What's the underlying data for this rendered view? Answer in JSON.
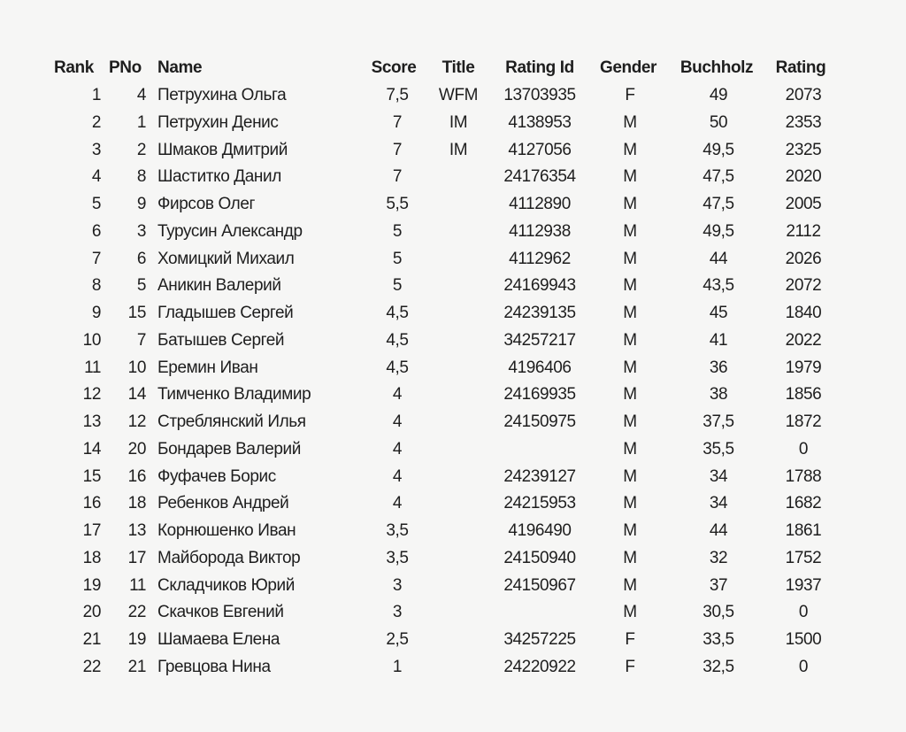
{
  "headers": {
    "rank": "Rank",
    "pno": "PNo",
    "name": "Name",
    "score": "Score",
    "title": "Title",
    "rating_id": "Rating Id",
    "gender": "Gender",
    "buchholz": "Buchholz",
    "rating": "Rating"
  },
  "rows": [
    {
      "rank": "1",
      "pno": "4",
      "name": "Петрухина Ольга",
      "score": "7,5",
      "title": "WFM",
      "rating_id": "13703935",
      "gender": "F",
      "buchholz": "49",
      "rating": "2073"
    },
    {
      "rank": "2",
      "pno": "1",
      "name": "Петрухин Денис",
      "score": "7",
      "title": "IM",
      "rating_id": "4138953",
      "gender": "M",
      "buchholz": "50",
      "rating": "2353"
    },
    {
      "rank": "3",
      "pno": "2",
      "name": "Шмаков Дмитрий",
      "score": "7",
      "title": "IM",
      "rating_id": "4127056",
      "gender": "M",
      "buchholz": "49,5",
      "rating": "2325"
    },
    {
      "rank": "4",
      "pno": "8",
      "name": "Шаститко Данил",
      "score": "7",
      "title": "",
      "rating_id": "24176354",
      "gender": "M",
      "buchholz": "47,5",
      "rating": "2020"
    },
    {
      "rank": "5",
      "pno": "9",
      "name": "Фирсов Олег",
      "score": "5,5",
      "title": "",
      "rating_id": "4112890",
      "gender": "M",
      "buchholz": "47,5",
      "rating": "2005"
    },
    {
      "rank": "6",
      "pno": "3",
      "name": "Турусин Александр",
      "score": "5",
      "title": "",
      "rating_id": "4112938",
      "gender": "M",
      "buchholz": "49,5",
      "rating": "2112"
    },
    {
      "rank": "7",
      "pno": "6",
      "name": "Хомицкий Михаил",
      "score": "5",
      "title": "",
      "rating_id": "4112962",
      "gender": "M",
      "buchholz": "44",
      "rating": "2026"
    },
    {
      "rank": "8",
      "pno": "5",
      "name": "Аникин Валерий",
      "score": "5",
      "title": "",
      "rating_id": "24169943",
      "gender": "M",
      "buchholz": "43,5",
      "rating": "2072"
    },
    {
      "rank": "9",
      "pno": "15",
      "name": "Гладышев Сергей",
      "score": "4,5",
      "title": "",
      "rating_id": "24239135",
      "gender": "M",
      "buchholz": "45",
      "rating": "1840"
    },
    {
      "rank": "10",
      "pno": "7",
      "name": "Батышев Сергей",
      "score": "4,5",
      "title": "",
      "rating_id": "34257217",
      "gender": "M",
      "buchholz": "41",
      "rating": "2022"
    },
    {
      "rank": "11",
      "pno": "10",
      "name": "Еремин Иван",
      "score": "4,5",
      "title": "",
      "rating_id": "4196406",
      "gender": "M",
      "buchholz": "36",
      "rating": "1979"
    },
    {
      "rank": "12",
      "pno": "14",
      "name": "Тимченко Владимир",
      "score": "4",
      "title": "",
      "rating_id": "24169935",
      "gender": "M",
      "buchholz": "38",
      "rating": "1856"
    },
    {
      "rank": "13",
      "pno": "12",
      "name": "Стреблянский Илья",
      "score": "4",
      "title": "",
      "rating_id": "24150975",
      "gender": "M",
      "buchholz": "37,5",
      "rating": "1872"
    },
    {
      "rank": "14",
      "pno": "20",
      "name": "Бондарев Валерий",
      "score": "4",
      "title": "",
      "rating_id": "",
      "gender": "M",
      "buchholz": "35,5",
      "rating": "0"
    },
    {
      "rank": "15",
      "pno": "16",
      "name": "Фуфачев Борис",
      "score": "4",
      "title": "",
      "rating_id": "24239127",
      "gender": "M",
      "buchholz": "34",
      "rating": "1788"
    },
    {
      "rank": "16",
      "pno": "18",
      "name": "Ребенков Андрей",
      "score": "4",
      "title": "",
      "rating_id": "24215953",
      "gender": "M",
      "buchholz": "34",
      "rating": "1682"
    },
    {
      "rank": "17",
      "pno": "13",
      "name": "Корнюшенко Иван",
      "score": "3,5",
      "title": "",
      "rating_id": "4196490",
      "gender": "M",
      "buchholz": "44",
      "rating": "1861"
    },
    {
      "rank": "18",
      "pno": "17",
      "name": "Майборода Виктор",
      "score": "3,5",
      "title": "",
      "rating_id": "24150940",
      "gender": "M",
      "buchholz": "32",
      "rating": "1752"
    },
    {
      "rank": "19",
      "pno": "11",
      "name": "Складчиков Юрий",
      "score": "3",
      "title": "",
      "rating_id": "24150967",
      "gender": "M",
      "buchholz": "37",
      "rating": "1937"
    },
    {
      "rank": "20",
      "pno": "22",
      "name": "Скачков Евгений",
      "score": "3",
      "title": "",
      "rating_id": "",
      "gender": "M",
      "buchholz": "30,5",
      "rating": "0"
    },
    {
      "rank": "21",
      "pno": "19",
      "name": "Шамаева Елена",
      "score": "2,5",
      "title": "",
      "rating_id": "34257225",
      "gender": "F",
      "buchholz": "33,5",
      "rating": "1500"
    },
    {
      "rank": "22",
      "pno": "21",
      "name": "Гревцова Нина",
      "score": "1",
      "title": "",
      "rating_id": "24220922",
      "gender": "F",
      "buchholz": "32,5",
      "rating": "0"
    }
  ]
}
